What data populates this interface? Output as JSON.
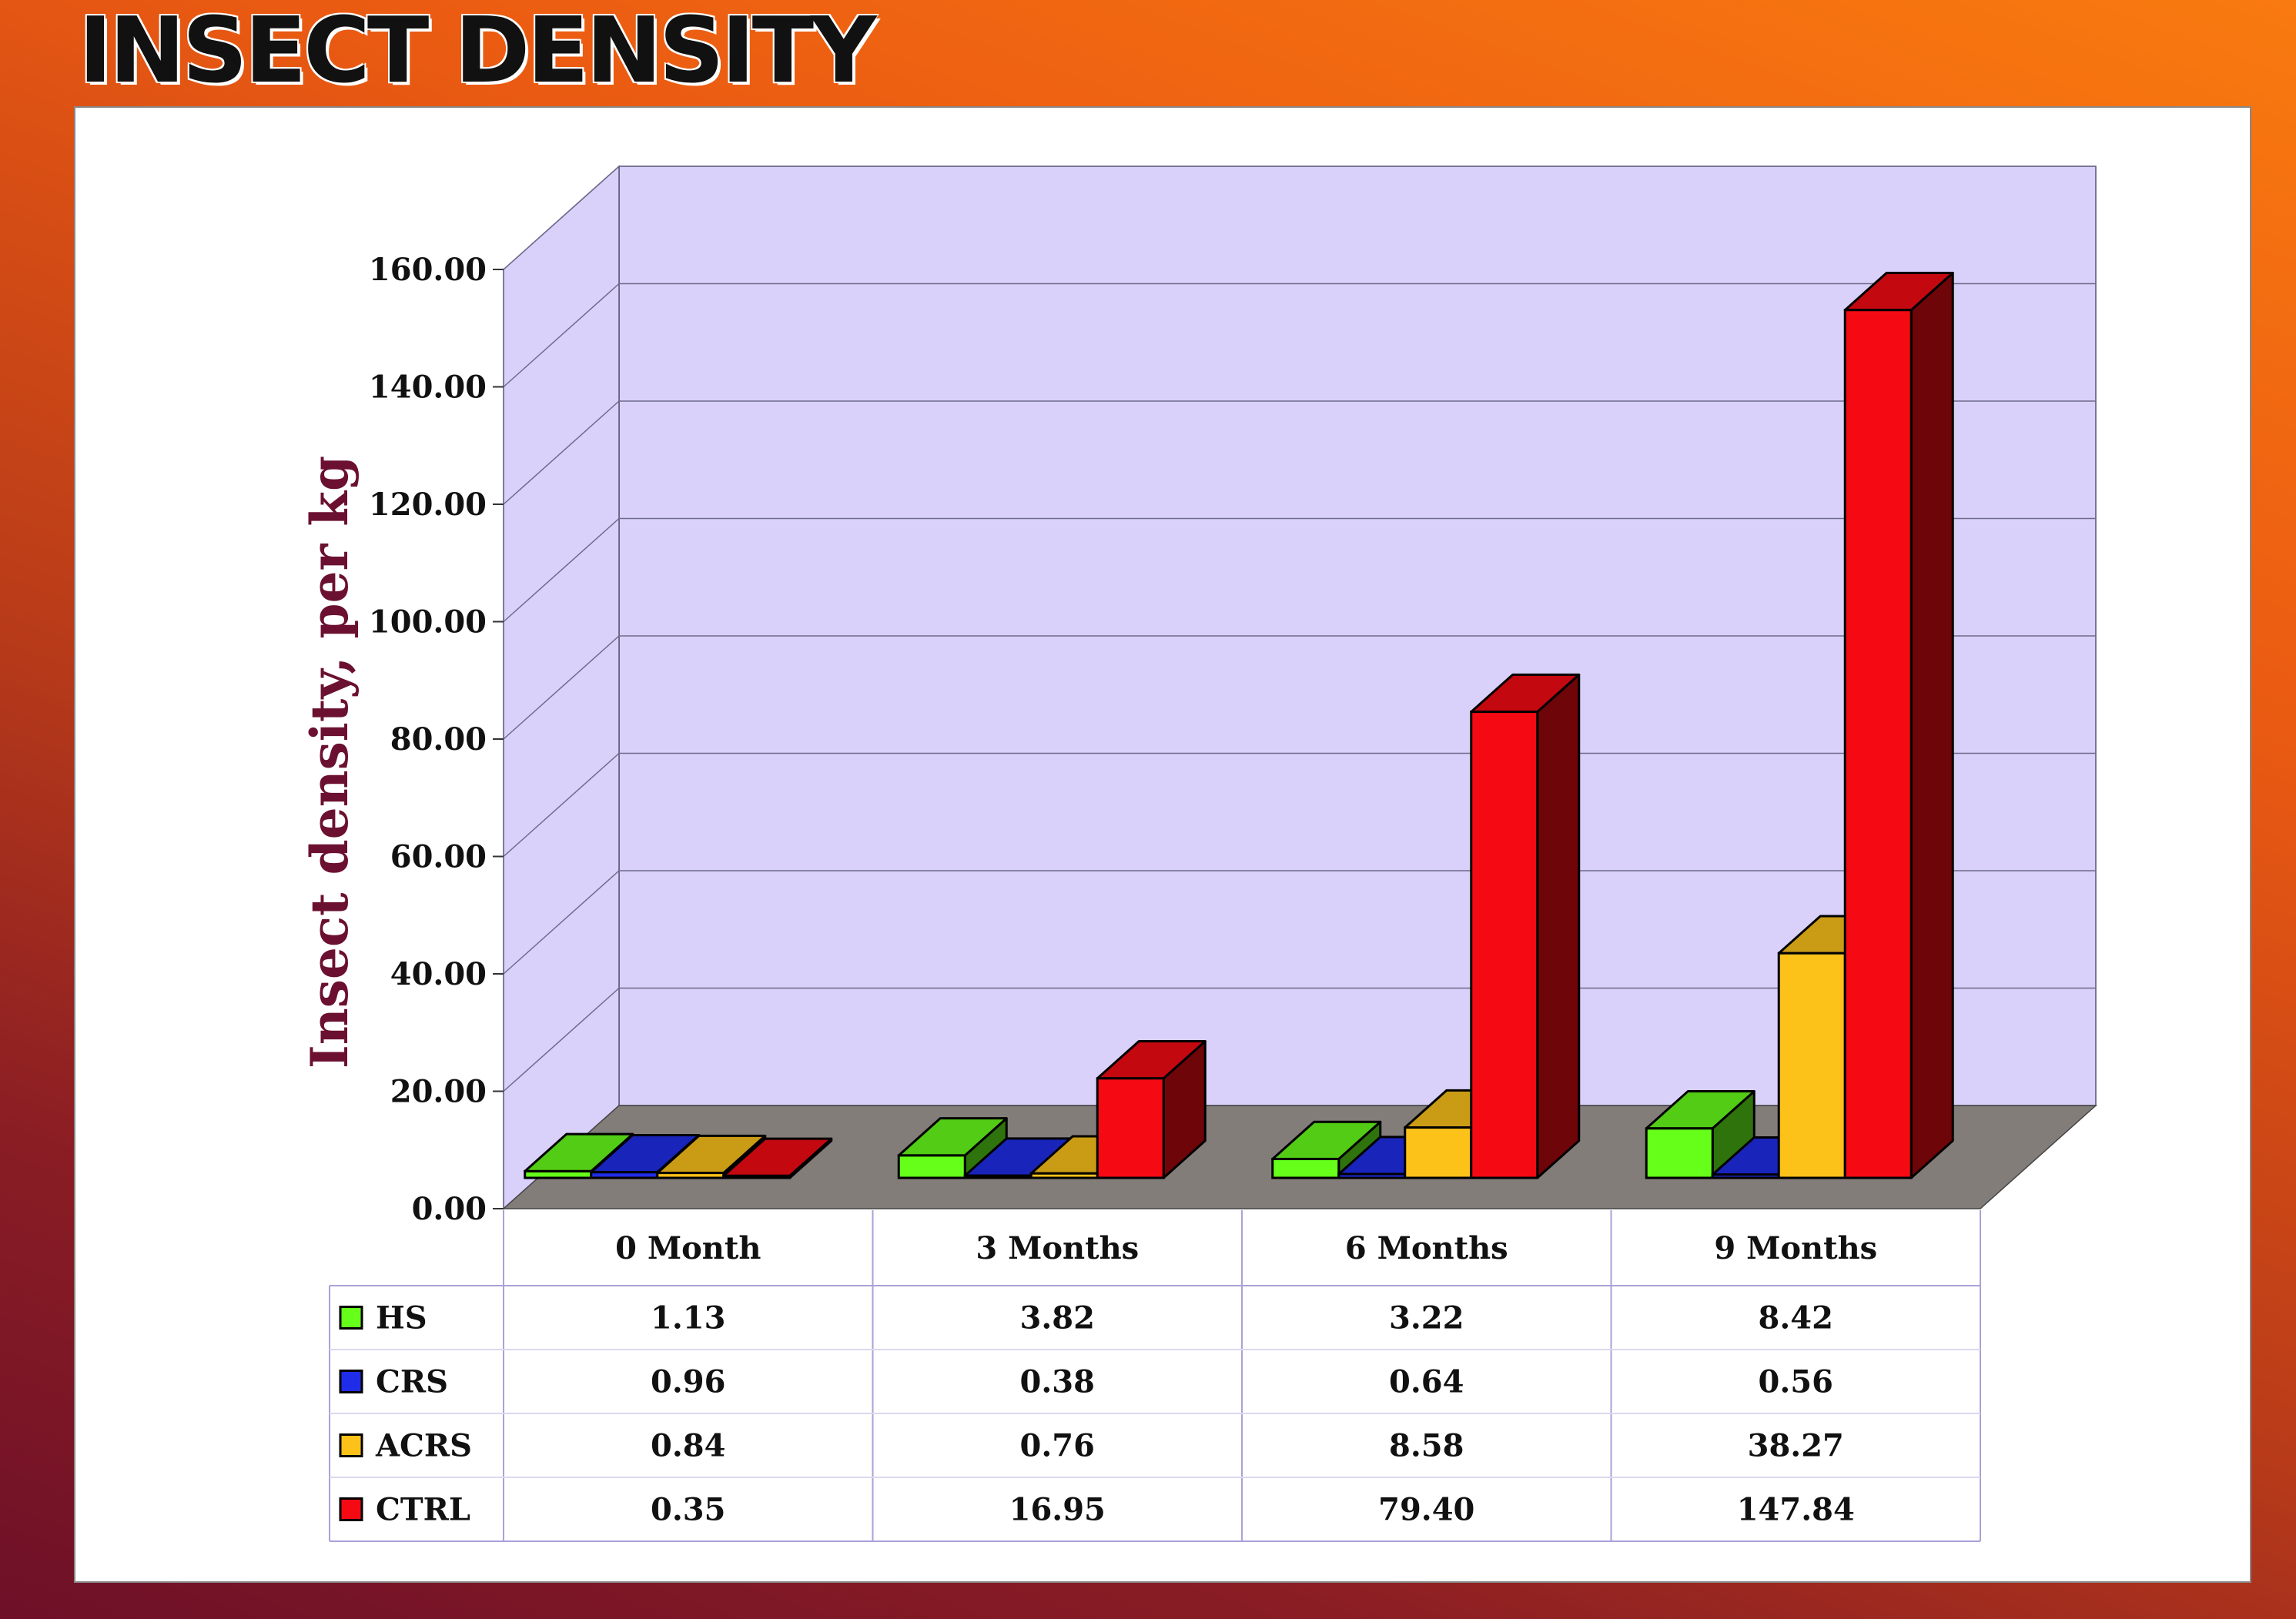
{
  "title": "INSECT DENSITY",
  "chart_data": {
    "type": "bar",
    "title": "",
    "xlabel": "",
    "ylabel": "Insect density, per kg",
    "ylim": [
      0,
      160
    ],
    "ytick_labels": [
      "0.00",
      "20.00",
      "40.00",
      "60.00",
      "80.00",
      "100.00",
      "120.00",
      "140.00",
      "160.00"
    ],
    "categories": [
      "0 Month",
      "3 Months",
      "6 Months",
      "9 Months"
    ],
    "grid": true,
    "three_d": true,
    "legend_placement": "data-table-left",
    "series": [
      {
        "name": "HS",
        "color": "#66ff1a",
        "values": [
          1.13,
          3.82,
          3.22,
          8.42
        ],
        "labels": [
          "1.13",
          "3.82",
          "3.22",
          "8.42"
        ]
      },
      {
        "name": "CRS",
        "color": "#1f2de8",
        "values": [
          0.96,
          0.38,
          0.64,
          0.56
        ],
        "labels": [
          "0.96",
          "0.38",
          "0.64",
          "0.56"
        ]
      },
      {
        "name": "ACRS",
        "color": "#fcc21a",
        "values": [
          0.84,
          0.76,
          8.58,
          38.27
        ],
        "labels": [
          "0.84",
          "0.76",
          "8.58",
          "38.27"
        ]
      },
      {
        "name": "CTRL",
        "color": "#f50a14",
        "values": [
          0.35,
          16.95,
          79.4,
          147.84
        ],
        "labels": [
          "0.35",
          "16.95",
          "79.40",
          "147.84"
        ]
      }
    ]
  }
}
